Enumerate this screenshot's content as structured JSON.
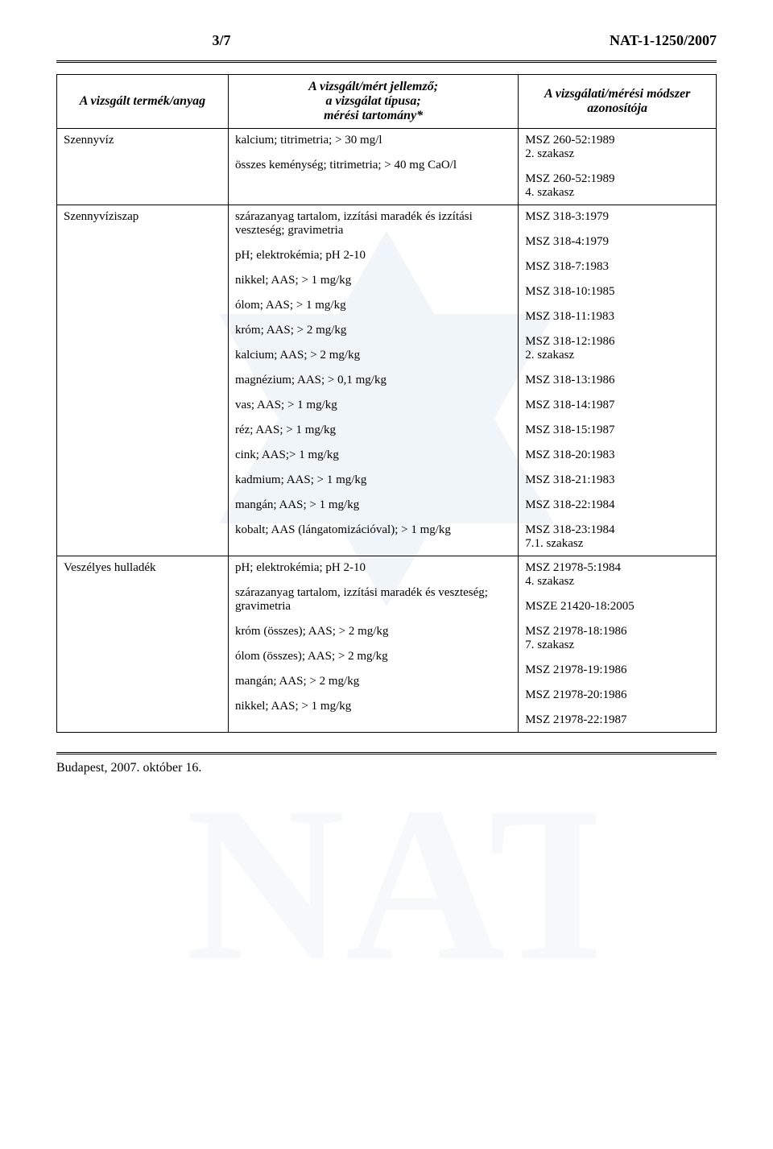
{
  "header": {
    "page_indicator": "3/7",
    "doc_id": "NAT-1-1250/2007"
  },
  "table": {
    "columns": [
      "A vizsgált termék/anyag",
      "A vizsgált/mért jellemző;\na vizsgálat típusa;\nmérési tartomány*",
      "A vizsgálati/mérési módszer\nazonosítója"
    ],
    "blocks": [
      {
        "product": "Szennyvíz",
        "rows": [
          {
            "param": "kalcium; titrimetria; > 30 mg/l",
            "method": "MSZ 260-52:1989\n2. szakasz"
          },
          {
            "param": "összes keménység; titrimetria; > 40 mg CaO/l",
            "method": "MSZ 260-52:1989\n4. szakasz"
          }
        ]
      },
      {
        "product": "Szennyvíziszap",
        "rows": [
          {
            "param": "szárazanyag tartalom, izzítási maradék és izzítási veszteség; gravimetria",
            "method": "MSZ 318-3:1979"
          },
          {
            "param": "pH; elektrokémia; pH 2-10",
            "method": "MSZ 318-4:1979"
          },
          {
            "param": "nikkel; AAS; > 1 mg/kg",
            "method": "MSZ 318-7:1983"
          },
          {
            "param": "ólom; AAS; > 1 mg/kg",
            "method": "MSZ 318-10:1985"
          },
          {
            "param": "króm; AAS; > 2 mg/kg",
            "method": "MSZ 318-11:1983"
          },
          {
            "param": "kalcium; AAS; > 2 mg/kg",
            "method": "MSZ 318-12:1986\n2. szakasz"
          },
          {
            "param": "magnézium; AAS; > 0,1 mg/kg",
            "method": "MSZ 318-13:1986"
          },
          {
            "param": "vas; AAS; > 1 mg/kg",
            "method": "MSZ 318-14:1987"
          },
          {
            "param": "réz; AAS; > 1 mg/kg",
            "method": "MSZ 318-15:1987"
          },
          {
            "param": "cink; AAS;> 1 mg/kg",
            "method": "MSZ 318-20:1983"
          },
          {
            "param": "kadmium; AAS; > 1 mg/kg",
            "method": "MSZ 318-21:1983"
          },
          {
            "param": "mangán; AAS; > 1 mg/kg",
            "method": "MSZ 318-22:1984"
          },
          {
            "param": "kobalt; AAS (lángatomizációval); > 1 mg/kg",
            "method": "MSZ 318-23:1984\n7.1. szakasz"
          }
        ]
      },
      {
        "product": "Veszélyes hulladék",
        "rows": [
          {
            "param": "pH; elektrokémia; pH 2-10",
            "method": "MSZ 21978-5:1984\n4. szakasz"
          },
          {
            "param": "szárazanyag tartalom, izzítási maradék és veszteség; gravimetria",
            "method": "MSZE 21420-18:2005"
          },
          {
            "param": "króm (összes); AAS; > 2 mg/kg",
            "method": "MSZ 21978-18:1986\n7. szakasz"
          },
          {
            "param": "ólom (összes); AAS; > 2 mg/kg",
            "method": "MSZ 21978-19:1986"
          },
          {
            "param": "mangán; AAS; > 2 mg/kg",
            "method": "MSZ 21978-20:1986"
          },
          {
            "param": "nikkel; AAS; > 1 mg/kg",
            "method": "MSZ 21978-22:1987"
          }
        ]
      }
    ]
  },
  "footer": {
    "text": "Budapest, 2007. október 16."
  },
  "watermark": {
    "star_fill": "#bcd5e6",
    "letters_fill": "#dfe8ef"
  }
}
